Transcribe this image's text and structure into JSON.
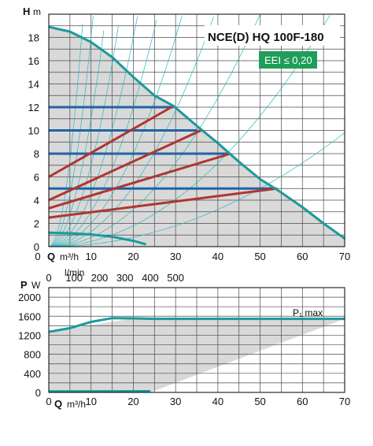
{
  "chart_data": [
    {
      "type": "line",
      "title": "NCE(D) HQ 100F-180",
      "badge": "EEI ≤ 0,20",
      "ylabel_symbol": "H",
      "ylabel_unit": "m",
      "xlabel_symbol": "Q",
      "xlabel_unit": "m³/h",
      "xlabel2_unit": "l/min",
      "xlim": [
        0,
        70
      ],
      "ylim": [
        0,
        20
      ],
      "x_ticks": [
        "0",
        "10",
        "20",
        "30",
        "40",
        "50",
        "60",
        "70"
      ],
      "y_ticks": [
        "0",
        "2",
        "4",
        "6",
        "8",
        "10",
        "12",
        "14",
        "16",
        "18"
      ],
      "x2_ticks": [
        "0",
        "100",
        "200",
        "300",
        "400",
        "500"
      ],
      "grid": true,
      "max_curve": {
        "x": [
          0,
          5,
          10,
          15,
          20,
          25,
          29.5,
          35,
          40,
          45,
          50,
          54,
          60,
          65,
          70
        ],
        "y": [
          18.9,
          18.5,
          17.6,
          16.3,
          14.6,
          13.0,
          12.1,
          10.4,
          8.9,
          7.3,
          5.8,
          4.9,
          3.4,
          2.0,
          0.7
        ]
      },
      "min_curve": {
        "x": [
          0,
          5,
          10,
          15,
          20,
          23
        ],
        "y": [
          1.2,
          1.15,
          1.05,
          0.85,
          0.5,
          0.2
        ]
      },
      "constant_pressure": [
        {
          "h": 12,
          "x_end": 29.5
        },
        {
          "h": 10,
          "x_end": 35
        },
        {
          "h": 8,
          "x_end": 43
        },
        {
          "h": 5,
          "x_end": 54
        }
      ],
      "proportional_pressure": [
        {
          "x": [
            0,
            29.5
          ],
          "y": [
            6.0,
            12.1
          ]
        },
        {
          "x": [
            0,
            36
          ],
          "y": [
            4.0,
            10.0
          ]
        },
        {
          "x": [
            0,
            43
          ],
          "y": [
            3.3,
            8.0
          ]
        },
        {
          "x": [
            0,
            54
          ],
          "y": [
            2.5,
            5.0
          ]
        }
      ]
    },
    {
      "type": "line",
      "ylabel_symbol": "P",
      "ylabel_unit": "W",
      "xlabel_symbol": "Q",
      "xlabel_unit": "m³/h",
      "xlim": [
        0,
        70
      ],
      "ylim": [
        0,
        2200
      ],
      "x_ticks": [
        "0",
        "10",
        "20",
        "30",
        "40",
        "50",
        "60",
        "70"
      ],
      "y_ticks": [
        "0",
        "400",
        "800",
        "1200",
        "1600",
        "2000"
      ],
      "annotation": "P₁ max",
      "grid": true,
      "max_curve": {
        "x": [
          0,
          5,
          10,
          15,
          20,
          25,
          30,
          40,
          50,
          60,
          70
        ],
        "y": [
          1270,
          1350,
          1480,
          1560,
          1555,
          1545,
          1545,
          1545,
          1545,
          1545,
          1545
        ]
      },
      "min_curve": {
        "x": [
          0,
          24
        ],
        "y": [
          20,
          25
        ]
      },
      "shaded_region": {
        "x": [
          0,
          24,
          70,
          70,
          20,
          0
        ],
        "y": [
          0,
          0,
          1545,
          1555,
          1555,
          1270
        ]
      }
    }
  ],
  "colors": {
    "max_curve": "#1a9a9c",
    "constant_pressure": "#1f63a6",
    "proportional_pressure": "#b0362f",
    "shade": "#d9d9d9",
    "grid": "#4a4a4a",
    "system_curves": "#2ab7c0",
    "badge": "#1e9e58"
  }
}
